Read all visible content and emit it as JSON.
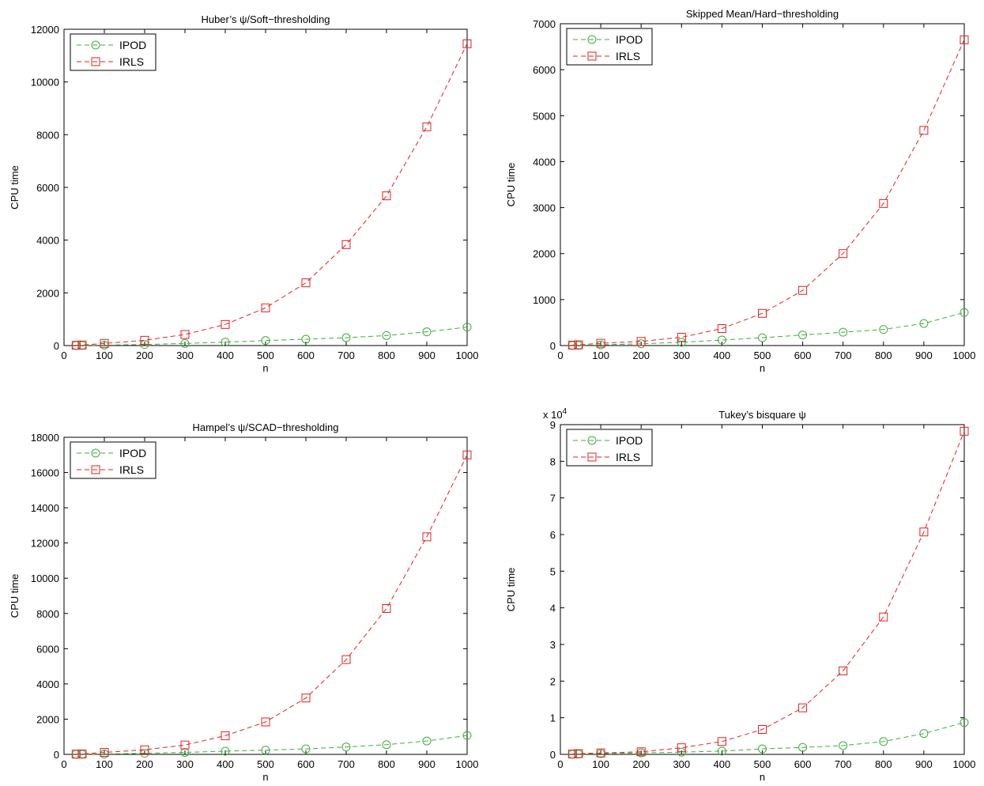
{
  "chart_data": [
    {
      "type": "line",
      "title": "Huber’s ψ/Soft−thresholding",
      "xlabel": "n",
      "ylabel": "CPU time",
      "xlim": [
        0,
        1000
      ],
      "ylim": [
        0,
        12000
      ],
      "xticks": [
        0,
        100,
        200,
        300,
        400,
        500,
        600,
        700,
        800,
        900,
        1000
      ],
      "yticks": [
        0,
        2000,
        4000,
        6000,
        8000,
        10000,
        12000
      ],
      "ytick_labels": [
        "0",
        "2000",
        "4000",
        "6000",
        "8000",
        "10000",
        "12000"
      ],
      "exponent_label": "",
      "legend_position": "top-left",
      "grid": false,
      "x": [
        30,
        45,
        100,
        200,
        300,
        400,
        500,
        600,
        700,
        800,
        900,
        1000
      ],
      "series": [
        {
          "name": "IPOD",
          "color": "#3aae3a",
          "marker": "circle",
          "values": [
            2,
            4,
            15,
            40,
            80,
            130,
            190,
            240,
            300,
            380,
            520,
            700
          ]
        },
        {
          "name": "IRLS",
          "color": "#e02020",
          "marker": "square",
          "values": [
            10,
            20,
            80,
            200,
            420,
            800,
            1430,
            2380,
            3830,
            5680,
            8300,
            11450
          ]
        }
      ]
    },
    {
      "type": "line",
      "title": "Skipped Mean/Hard−thresholding",
      "xlabel": "n",
      "ylabel": "CPU time",
      "xlim": [
        0,
        1000
      ],
      "ylim": [
        0,
        7000
      ],
      "xticks": [
        0,
        100,
        200,
        300,
        400,
        500,
        600,
        700,
        800,
        900,
        1000
      ],
      "yticks": [
        0,
        1000,
        2000,
        3000,
        4000,
        5000,
        6000,
        7000
      ],
      "ytick_labels": [
        "0",
        "1000",
        "2000",
        "3000",
        "4000",
        "5000",
        "6000",
        "7000"
      ],
      "exponent_label": "",
      "legend_position": "top-left",
      "grid": false,
      "x": [
        30,
        45,
        100,
        200,
        300,
        400,
        500,
        600,
        700,
        800,
        900,
        1000
      ],
      "series": [
        {
          "name": "IPOD",
          "color": "#3aae3a",
          "marker": "circle",
          "values": [
            2,
            4,
            15,
            40,
            70,
            120,
            170,
            230,
            290,
            350,
            480,
            720
          ]
        },
        {
          "name": "IRLS",
          "color": "#e02020",
          "marker": "square",
          "values": [
            10,
            15,
            50,
            90,
            180,
            370,
            700,
            1200,
            2000,
            3090,
            4680,
            6650
          ]
        }
      ]
    },
    {
      "type": "line",
      "title": "Hampel’s ψ/SCAD−thresholding",
      "xlabel": "n",
      "ylabel": "CPU time",
      "xlim": [
        0,
        1000
      ],
      "ylim": [
        0,
        18000
      ],
      "xticks": [
        0,
        100,
        200,
        300,
        400,
        500,
        600,
        700,
        800,
        900,
        1000
      ],
      "yticks": [
        0,
        2000,
        4000,
        6000,
        8000,
        10000,
        12000,
        14000,
        16000,
        18000
      ],
      "ytick_labels": [
        "0",
        "2000",
        "4000",
        "6000",
        "8000",
        "10000",
        "12000",
        "14000",
        "16000",
        "18000"
      ],
      "exponent_label": "",
      "legend_position": "top-left",
      "grid": false,
      "x": [
        30,
        45,
        100,
        200,
        300,
        400,
        500,
        600,
        700,
        800,
        900,
        1000
      ],
      "series": [
        {
          "name": "IPOD",
          "color": "#3aae3a",
          "marker": "circle",
          "values": [
            3,
            5,
            20,
            60,
            110,
            180,
            240,
            310,
            420,
            550,
            760,
            1070
          ]
        },
        {
          "name": "IRLS",
          "color": "#e02020",
          "marker": "square",
          "values": [
            15,
            25,
            110,
            260,
            530,
            1060,
            1840,
            3200,
            5380,
            8280,
            12350,
            17000
          ]
        }
      ]
    },
    {
      "type": "line",
      "title": "Tukey’s bisquare ψ",
      "xlabel": "n",
      "ylabel": "CPU time",
      "xlim": [
        0,
        1000
      ],
      "ylim": [
        0,
        9
      ],
      "xticks": [
        0,
        100,
        200,
        300,
        400,
        500,
        600,
        700,
        800,
        900,
        1000
      ],
      "yticks": [
        0,
        1,
        2,
        3,
        4,
        5,
        6,
        7,
        8,
        9
      ],
      "ytick_labels": [
        "0",
        "1",
        "2",
        "3",
        "4",
        "5",
        "6",
        "7",
        "8",
        "9"
      ],
      "exponent_label": "x 10",
      "exponent_power": "4",
      "legend_position": "top-left",
      "grid": false,
      "x": [
        30,
        45,
        100,
        200,
        300,
        400,
        500,
        600,
        700,
        800,
        900,
        1000
      ],
      "series": [
        {
          "name": "IPOD",
          "color": "#3aae3a",
          "marker": "circle",
          "values": [
            0.005,
            0.008,
            0.02,
            0.04,
            0.06,
            0.09,
            0.15,
            0.19,
            0.24,
            0.35,
            0.57,
            0.87
          ]
        },
        {
          "name": "IRLS",
          "color": "#e02020",
          "marker": "square",
          "values": [
            0.01,
            0.02,
            0.04,
            0.07,
            0.18,
            0.35,
            0.68,
            1.27,
            2.28,
            3.75,
            6.07,
            8.82
          ]
        }
      ]
    }
  ]
}
